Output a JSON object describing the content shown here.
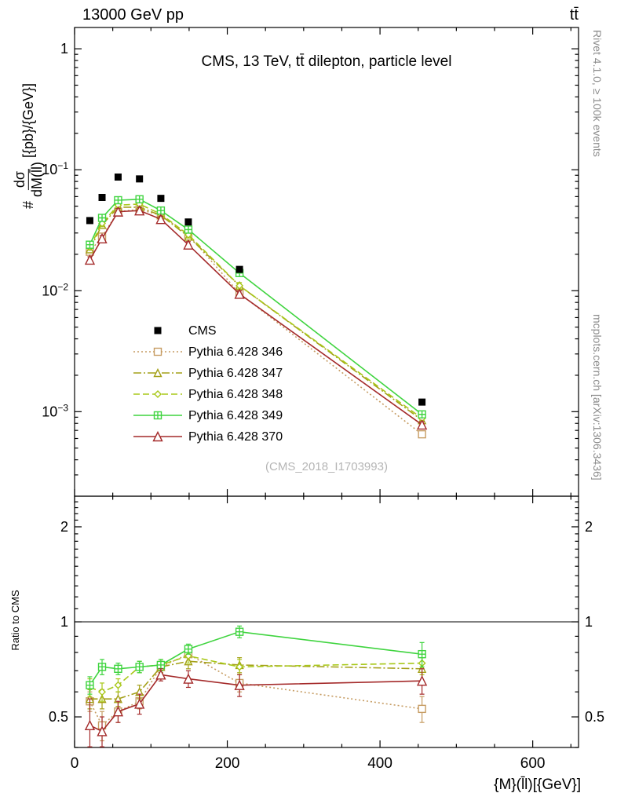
{
  "header": {
    "left": "13000 GeV pp",
    "right": "tt̄"
  },
  "side": {
    "rivet": "Rivet 4.1.0, ≥ 100k events",
    "mcplots": "mcplots.cern.ch [arXiv:1306.3436]"
  },
  "watermark": "(CMS_2018_I1703993)",
  "chart_data": {
    "type": "line",
    "title": "CMS, 13 TeV, tt̄ dilepton, particle level",
    "xlabel": "{M}(l̄l)[{GeV}]",
    "ylabel": {
      "prefix": "#",
      "numerator": "dσ",
      "denominator": "dM(l̄l)",
      "units": "[{pb}/{GeV}]"
    },
    "ratio_ylabel": "Ratio to CMS",
    "x": [
      20,
      36,
      57,
      85,
      113,
      149,
      216,
      455
    ],
    "xlim": [
      0,
      660
    ],
    "x_major_ticks": [
      0,
      200,
      400,
      600
    ],
    "x_tick_labels": [
      "0",
      "200",
      "400",
      "600"
    ],
    "x_minor_step": 50,
    "main": {
      "scale": "log",
      "ylim": [
        0.0002,
        1.5
      ],
      "ytick_values": [
        1,
        0.1,
        0.01,
        0.001
      ],
      "ytick_labels": [
        {
          "base": "1",
          "exp": ""
        },
        {
          "base": "10",
          "exp": "−1"
        },
        {
          "base": "10",
          "exp": "−2"
        },
        {
          "base": "10",
          "exp": "−3"
        }
      ]
    },
    "ratio": {
      "scale": "log",
      "ylim": [
        0.4,
        2.5
      ],
      "ref_line": 1,
      "ytick_values": [
        0.5,
        1,
        2
      ],
      "ytick_labels": [
        "0.5",
        "1",
        "2"
      ]
    },
    "series": [
      {
        "name": "CMS",
        "color": "#000000",
        "marker": "square-filled",
        "line": "none",
        "marker_size": 9,
        "rel_err": 0.04,
        "values": [
          0.038,
          0.059,
          0.087,
          0.084,
          0.058,
          0.037,
          0.015,
          0.0012
        ],
        "ratio": null,
        "ratio_err": null
      },
      {
        "name": "Pythia 6.428 346",
        "color": "#c69c62",
        "marker": "square-open",
        "line": "dotted",
        "marker_size": 9,
        "rel_err": 0.06,
        "values": [
          0.021,
          0.028,
          0.045,
          0.047,
          0.042,
          0.029,
          0.0095,
          0.00065
        ],
        "ratio": [
          0.56,
          0.47,
          0.52,
          0.56,
          0.72,
          0.79,
          0.64,
          0.53
        ],
        "ratio_err": [
          0.04,
          0.05,
          0.04,
          0.03,
          0.03,
          0.04,
          0.04,
          0.05
        ]
      },
      {
        "name": "Pythia 6.428 347",
        "color": "#a4a018",
        "marker": "triangle-open",
        "line": "dashdot",
        "marker_size": 9,
        "rel_err": 0.06,
        "values": [
          0.022,
          0.035,
          0.049,
          0.049,
          0.042,
          0.028,
          0.011,
          0.00085
        ],
        "ratio": [
          0.57,
          0.57,
          0.57,
          0.6,
          0.72,
          0.75,
          0.73,
          0.71
        ],
        "ratio_err": [
          0.04,
          0.04,
          0.03,
          0.03,
          0.03,
          0.04,
          0.04,
          0.06
        ]
      },
      {
        "name": "Pythia 6.428 348",
        "color": "#a8c819",
        "marker": "diamond-open",
        "line": "dashed",
        "marker_size": 8,
        "rel_err": 0.06,
        "values": [
          0.023,
          0.036,
          0.051,
          0.052,
          0.043,
          0.029,
          0.011,
          0.00088
        ],
        "ratio": [
          0.62,
          0.6,
          0.63,
          0.72,
          0.73,
          0.78,
          0.72,
          0.74
        ],
        "ratio_err": [
          0.04,
          0.04,
          0.03,
          0.03,
          0.03,
          0.04,
          0.04,
          0.06
        ]
      },
      {
        "name": "Pythia 6.428 349",
        "color": "#3fd43f",
        "marker": "plus-square",
        "line": "solid",
        "marker_size": 9,
        "rel_err": 0.06,
        "values": [
          0.024,
          0.04,
          0.056,
          0.057,
          0.046,
          0.032,
          0.014,
          0.00095
        ],
        "ratio": [
          0.63,
          0.72,
          0.71,
          0.72,
          0.73,
          0.82,
          0.93,
          0.79
        ],
        "ratio_err": [
          0.04,
          0.04,
          0.03,
          0.03,
          0.03,
          0.03,
          0.04,
          0.07
        ]
      },
      {
        "name": "Pythia 6.428 370",
        "color": "#a42a2a",
        "marker": "triangle-open",
        "line": "solid",
        "marker_size": 11,
        "rel_err": 0.06,
        "values": [
          0.018,
          0.027,
          0.045,
          0.046,
          0.039,
          0.024,
          0.0094,
          0.00078
        ],
        "ratio": [
          0.47,
          0.45,
          0.52,
          0.55,
          0.68,
          0.66,
          0.63,
          0.65
        ],
        "ratio_err": [
          0.1,
          0.05,
          0.04,
          0.04,
          0.03,
          0.04,
          0.05,
          0.06
        ]
      }
    ]
  }
}
